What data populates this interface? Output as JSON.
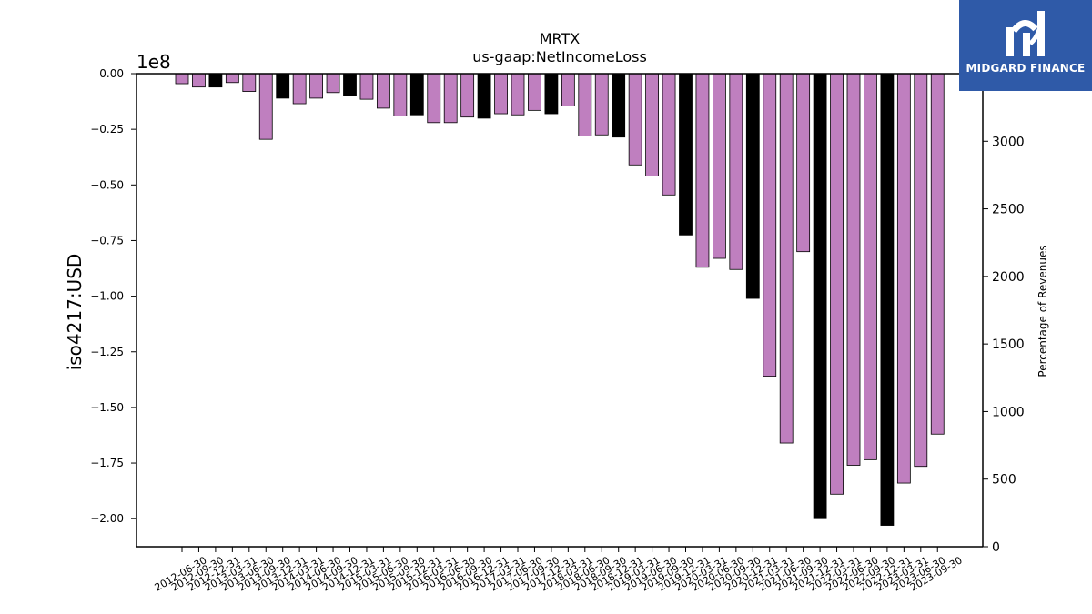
{
  "brand": {
    "logo_text": "MIDGARD FINANCE",
    "logo_color": "#2f5aa8"
  },
  "chart_data": {
    "type": "bar",
    "title": "MRTX",
    "subtitle": "us-gaap:NetIncomeLoss",
    "ylabel": "iso4217:USD",
    "y_offset_label": "1e8",
    "y2label": "Percentage of Revenues",
    "ylim": [
      -2.12,
      0
    ],
    "y_ticks": [
      "0.00",
      "−0.25",
      "−0.50",
      "−0.75",
      "−1.00",
      "−1.25",
      "−1.50",
      "−1.75",
      "−2.00"
    ],
    "y2lim": [
      0,
      3500
    ],
    "y2_ticks": [
      "0",
      "500",
      "1000",
      "1500",
      "2000",
      "2500",
      "3000"
    ],
    "x_tick_labels": [
      "2012-06-30",
      "2012-09-30",
      "2012-12-31",
      "2013-03-31",
      "2013-06-30",
      "2013-09-30",
      "2013-12-31",
      "2014-03-31",
      "2014-06-30",
      "2014-09-30",
      "2014-12-31",
      "2015-03-31",
      "2015-06-30",
      "2015-09-30",
      "2015-12-31",
      "2016-03-31",
      "2016-06-30",
      "2016-09-30",
      "2016-12-31",
      "2017-03-31",
      "2017-06-30",
      "2017-09-30",
      "2017-12-31",
      "2018-03-31",
      "2018-06-30",
      "2018-09-30",
      "2018-12-31",
      "2019-03-31",
      "2019-06-30",
      "2019-09-30",
      "2019-12-31",
      "2020-03-31",
      "2020-06-30",
      "2020-09-30",
      "2020-12-31",
      "2021-03-31",
      "2021-06-30",
      "2021-09-30",
      "2021-12-31",
      "2022-03-31",
      "2022-06-30",
      "2022-09-30",
      "2022-12-31",
      "2023-03-31",
      "2023-06-30",
      "2023-09-30"
    ],
    "bars": [
      {
        "value": -0.045,
        "kind": "quarter"
      },
      {
        "value": -0.06,
        "kind": "quarter"
      },
      {
        "value": -0.06,
        "kind": "annual"
      },
      {
        "value": -0.04,
        "kind": "quarter"
      },
      {
        "value": -0.08,
        "kind": "quarter"
      },
      {
        "value": -0.295,
        "kind": "quarter"
      },
      {
        "value": -0.11,
        "kind": "annual"
      },
      {
        "value": -0.135,
        "kind": "quarter"
      },
      {
        "value": -0.11,
        "kind": "quarter"
      },
      {
        "value": -0.085,
        "kind": "quarter"
      },
      {
        "value": -0.1,
        "kind": "annual"
      },
      {
        "value": -0.115,
        "kind": "quarter"
      },
      {
        "value": -0.155,
        "kind": "quarter"
      },
      {
        "value": -0.19,
        "kind": "quarter"
      },
      {
        "value": -0.185,
        "kind": "annual"
      },
      {
        "value": -0.22,
        "kind": "quarter"
      },
      {
        "value": -0.22,
        "kind": "quarter"
      },
      {
        "value": -0.195,
        "kind": "quarter"
      },
      {
        "value": -0.2,
        "kind": "annual"
      },
      {
        "value": -0.18,
        "kind": "quarter"
      },
      {
        "value": -0.185,
        "kind": "quarter"
      },
      {
        "value": -0.165,
        "kind": "quarter"
      },
      {
        "value": -0.18,
        "kind": "annual"
      },
      {
        "value": -0.145,
        "kind": "quarter"
      },
      {
        "value": -0.28,
        "kind": "quarter"
      },
      {
        "value": -0.275,
        "kind": "quarter"
      },
      {
        "value": -0.285,
        "kind": "annual"
      },
      {
        "value": -0.41,
        "kind": "quarter"
      },
      {
        "value": -0.46,
        "kind": "quarter"
      },
      {
        "value": -0.545,
        "kind": "quarter"
      },
      {
        "value": -0.725,
        "kind": "annual"
      },
      {
        "value": -0.87,
        "kind": "quarter"
      },
      {
        "value": -0.83,
        "kind": "quarter"
      },
      {
        "value": -0.88,
        "kind": "quarter"
      },
      {
        "value": -1.01,
        "kind": "annual"
      },
      {
        "value": -1.36,
        "kind": "quarter"
      },
      {
        "value": -1.66,
        "kind": "quarter"
      },
      {
        "value": -0.8,
        "kind": "quarter"
      },
      {
        "value": -2.0,
        "kind": "annual"
      },
      {
        "value": -1.89,
        "kind": "quarter"
      },
      {
        "value": -1.76,
        "kind": "quarter"
      },
      {
        "value": -1.735,
        "kind": "quarter"
      },
      {
        "value": -2.03,
        "kind": "annual"
      },
      {
        "value": -1.84,
        "kind": "quarter"
      },
      {
        "value": -1.765,
        "kind": "quarter"
      },
      {
        "value": -1.62,
        "kind": "quarter"
      }
    ],
    "colors": {
      "quarter": "#bf7fbf",
      "annual": "#000000",
      "bar_edge": "#000000"
    },
    "grid": false,
    "legend": "none"
  }
}
